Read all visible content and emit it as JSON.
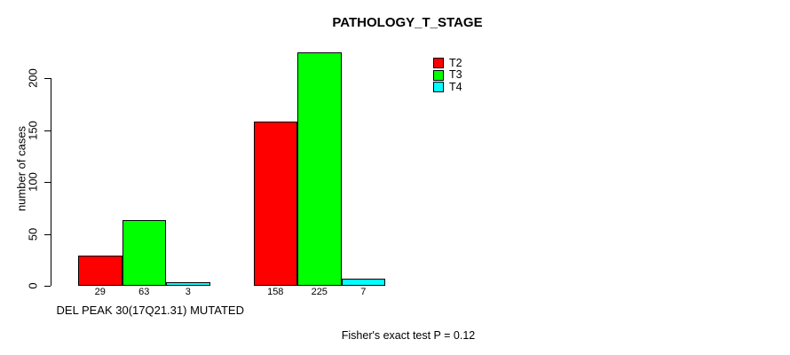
{
  "title": "PATHOLOGY_T_STAGE",
  "footer": {
    "stat_text": "Fisher's exact test P = 0.12"
  },
  "chart_data": {
    "type": "bar",
    "title": "PATHOLOGY_T_STAGE",
    "xlabel": "",
    "ylabel": "number of cases",
    "ylim": [
      0,
      200
    ],
    "yticks": [
      0,
      50,
      100,
      150,
      200
    ],
    "grid": false,
    "legend_position": "top-right",
    "bar_border_color": "#000000",
    "show_values_under_bars": true,
    "group_labels": [
      "DEL PEAK 30(17Q21.31) MUTATED",
      ""
    ],
    "series": [
      {
        "name": "T2",
        "color": "#FF0000",
        "values": [
          29,
          158
        ]
      },
      {
        "name": "T3",
        "color": "#00FF00",
        "values": [
          63,
          225
        ]
      },
      {
        "name": "T4",
        "color": "#00FFFF",
        "values": [
          3,
          7
        ]
      }
    ],
    "annotation": "Fisher's exact test P = 0.12"
  }
}
